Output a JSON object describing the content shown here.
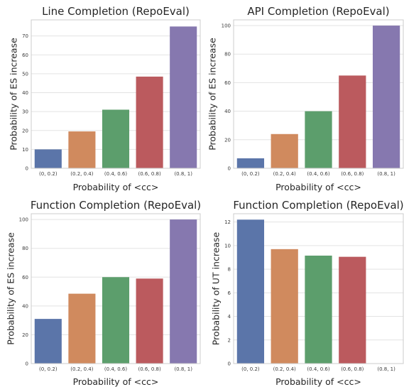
{
  "chart_data": [
    {
      "type": "bar",
      "title": "Line Completion (RepoEval)",
      "xlabel": "Probability of <cc>",
      "ylabel": "Probability of ES increase",
      "categories": [
        "(0, 0.2)",
        "(0.2, 0.4)",
        "(0.4, 0.6)",
        "(0.6, 0.8)",
        "(0.8, 1)"
      ],
      "values": [
        10,
        19.5,
        31,
        48.5,
        75
      ],
      "ylim": [
        0,
        78.5
      ],
      "yticks": [
        0,
        10,
        20,
        30,
        40,
        50,
        60,
        70
      ],
      "grid": true
    },
    {
      "type": "bar",
      "title": "API Completion (RepoEval)",
      "xlabel": "Probability of <cc>",
      "ylabel": "Probability of ES increase",
      "categories": [
        "(0, 0.2)",
        "(0.2, 0.4)",
        "(0.4, 0.6)",
        "(0.6, 0.8)",
        "(0.8, 1)"
      ],
      "values": [
        7,
        24,
        40,
        65,
        100
      ],
      "ylim": [
        0,
        104
      ],
      "yticks": [
        0,
        20,
        40,
        60,
        80,
        100
      ],
      "grid": true
    },
    {
      "type": "bar",
      "title": "Function Completion (RepoEval)",
      "xlabel": "Probability of <cc>",
      "ylabel": "Probability of ES increase",
      "categories": [
        "(0, 0.2)",
        "(0.2, 0.4)",
        "(0.4, 0.6)",
        "(0.6, 0.8)",
        "(0.8, 1)"
      ],
      "values": [
        31,
        48.5,
        60,
        59,
        100
      ],
      "ylim": [
        0,
        104
      ],
      "yticks": [
        0,
        20,
        40,
        60,
        80,
        100
      ],
      "grid": true
    },
    {
      "type": "bar",
      "title": "Function Completion (RepoEval)",
      "xlabel": "Probability of <cc>",
      "ylabel": "Probability of UT increase",
      "categories": [
        "(0, 0.2)",
        "(0.2, 0.4)",
        "(0.4, 0.6)",
        "(0.6, 0.8)",
        "(0.8, 1)"
      ],
      "values": [
        12.2,
        9.7,
        9.15,
        9.05,
        0
      ],
      "ylim": [
        0,
        12.7
      ],
      "yticks": [
        0,
        2,
        4,
        6,
        8,
        10,
        12
      ],
      "grid": true
    }
  ],
  "colors": {
    "bars": [
      "#5b75a9",
      "#d08a5e",
      "#5c9e6c",
      "#bb5a5e",
      "#8678af"
    ]
  }
}
